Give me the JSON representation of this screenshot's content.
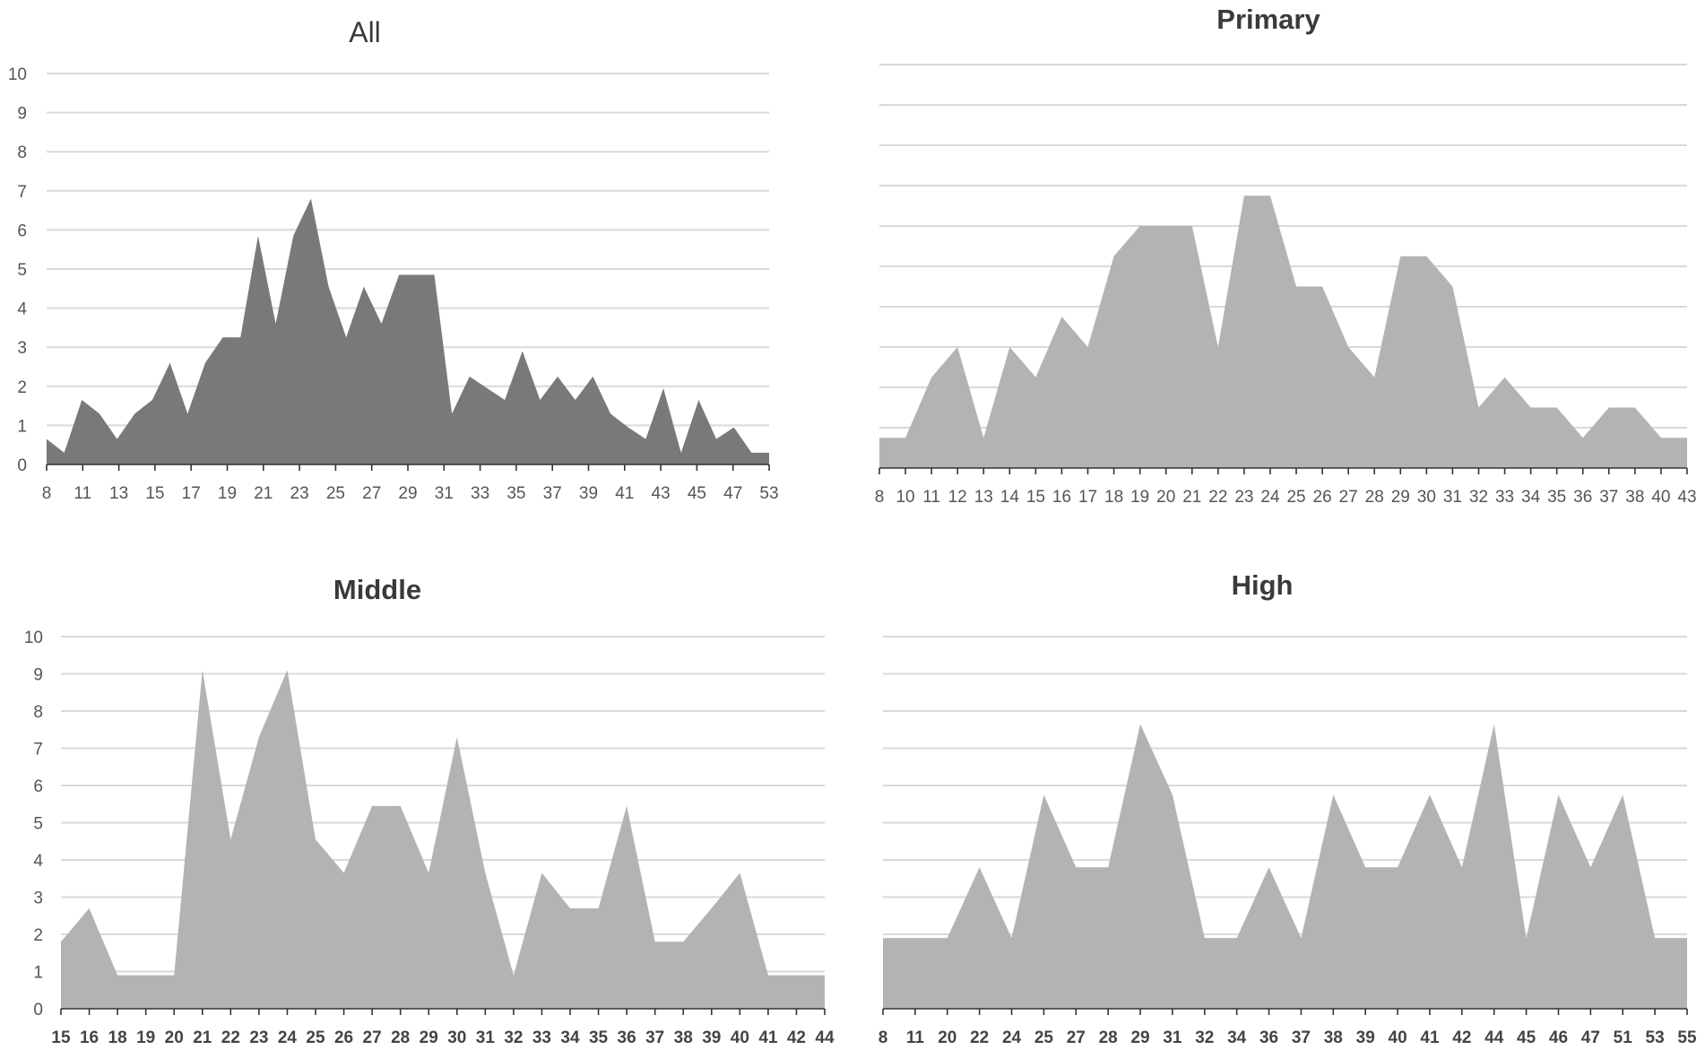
{
  "chart_data": [
    {
      "type": "area",
      "title": "All",
      "title_style": "normal",
      "fill": "#78797b",
      "ylim": [
        0,
        10
      ],
      "yticks": [
        0,
        1,
        2,
        3,
        4,
        5,
        6,
        7,
        8,
        9,
        10
      ],
      "show_y_labels": true,
      "xtick_labels": [
        "8",
        "11",
        "13",
        "15",
        "17",
        "19",
        "21",
        "23",
        "25",
        "27",
        "29",
        "31",
        "33",
        "35",
        "37",
        "39",
        "41",
        "43",
        "45",
        "47",
        "53"
      ],
      "values": [
        0.65,
        0.3,
        1.65,
        1.3,
        0.65,
        1.3,
        1.65,
        2.6,
        1.3,
        2.6,
        3.25,
        3.25,
        5.85,
        3.6,
        5.85,
        6.8,
        4.55,
        3.25,
        4.55,
        3.6,
        4.85,
        4.85,
        4.85,
        1.3,
        2.25,
        1.95,
        1.65,
        2.9,
        1.65,
        2.25,
        1.65,
        2.25,
        1.3,
        0.95,
        0.65,
        1.95,
        0.3,
        1.65,
        0.65,
        0.95,
        0.3,
        0.3
      ]
    },
    {
      "type": "area",
      "title": "Primary",
      "title_style": "bold",
      "fill": "#b3b3b4",
      "ylim": [
        0,
        10
      ],
      "yticks": [
        0,
        1,
        2,
        3,
        4,
        5,
        6,
        7,
        8,
        9,
        10
      ],
      "show_y_labels": false,
      "xtick_labels": [
        "8",
        "10",
        "11",
        "12",
        "13",
        "14",
        "15",
        "16",
        "17",
        "18",
        "19",
        "20",
        "21",
        "22",
        "23",
        "24",
        "25",
        "26",
        "27",
        "28",
        "29",
        "30",
        "31",
        "32",
        "33",
        "34",
        "35",
        "36",
        "37",
        "38",
        "40",
        "43"
      ],
      "values": [
        0.75,
        0.75,
        2.25,
        3.0,
        0.75,
        3.0,
        2.25,
        3.75,
        3.0,
        5.25,
        6.0,
        6.0,
        6.0,
        3.0,
        6.75,
        6.75,
        4.5,
        4.5,
        3.0,
        2.25,
        5.25,
        5.25,
        4.5,
        1.5,
        2.25,
        1.5,
        1.5,
        0.75,
        1.5,
        1.5,
        0.75,
        0.75
      ]
    },
    {
      "type": "area",
      "title": "Middle",
      "title_style": "bold",
      "fill": "#b3b3b4",
      "ylim": [
        0,
        10
      ],
      "yticks": [
        0,
        1,
        2,
        3,
        4,
        5,
        6,
        7,
        8,
        9,
        10
      ],
      "show_y_labels": true,
      "xtick_labels": [
        "15",
        "16",
        "18",
        "19",
        "20",
        "21",
        "22",
        "23",
        "24",
        "25",
        "26",
        "27",
        "28",
        "29",
        "30",
        "31",
        "32",
        "33",
        "34",
        "35",
        "36",
        "37",
        "38",
        "39",
        "40",
        "41",
        "42",
        "44"
      ],
      "values": [
        1.8,
        2.7,
        0.9,
        0.9,
        0.9,
        9.1,
        4.55,
        7.3,
        9.1,
        4.55,
        3.65,
        5.45,
        5.45,
        3.65,
        7.3,
        3.65,
        0.9,
        3.65,
        2.7,
        2.7,
        5.45,
        1.8,
        1.8,
        2.7,
        3.65,
        0.9,
        0.9,
        0.9
      ]
    },
    {
      "type": "area",
      "title": "High",
      "title_style": "bold",
      "fill": "#b3b3b4",
      "ylim": [
        0,
        10
      ],
      "yticks": [
        0,
        1,
        2,
        3,
        4,
        5,
        6,
        7,
        8,
        9,
        10
      ],
      "show_y_labels": false,
      "xtick_labels": [
        "8",
        "11",
        "20",
        "22",
        "24",
        "25",
        "27",
        "28",
        "29",
        "31",
        "32",
        "34",
        "36",
        "37",
        "38",
        "39",
        "40",
        "41",
        "42",
        "44",
        "45",
        "46",
        "47",
        "51",
        "53",
        "55"
      ],
      "values": [
        1.9,
        1.9,
        1.9,
        3.8,
        1.9,
        5.75,
        3.8,
        3.8,
        7.65,
        5.75,
        1.9,
        1.9,
        3.8,
        1.9,
        5.75,
        3.8,
        3.8,
        5.75,
        3.8,
        7.65,
        1.9,
        5.75,
        3.8,
        5.75,
        1.9,
        1.9
      ]
    }
  ]
}
